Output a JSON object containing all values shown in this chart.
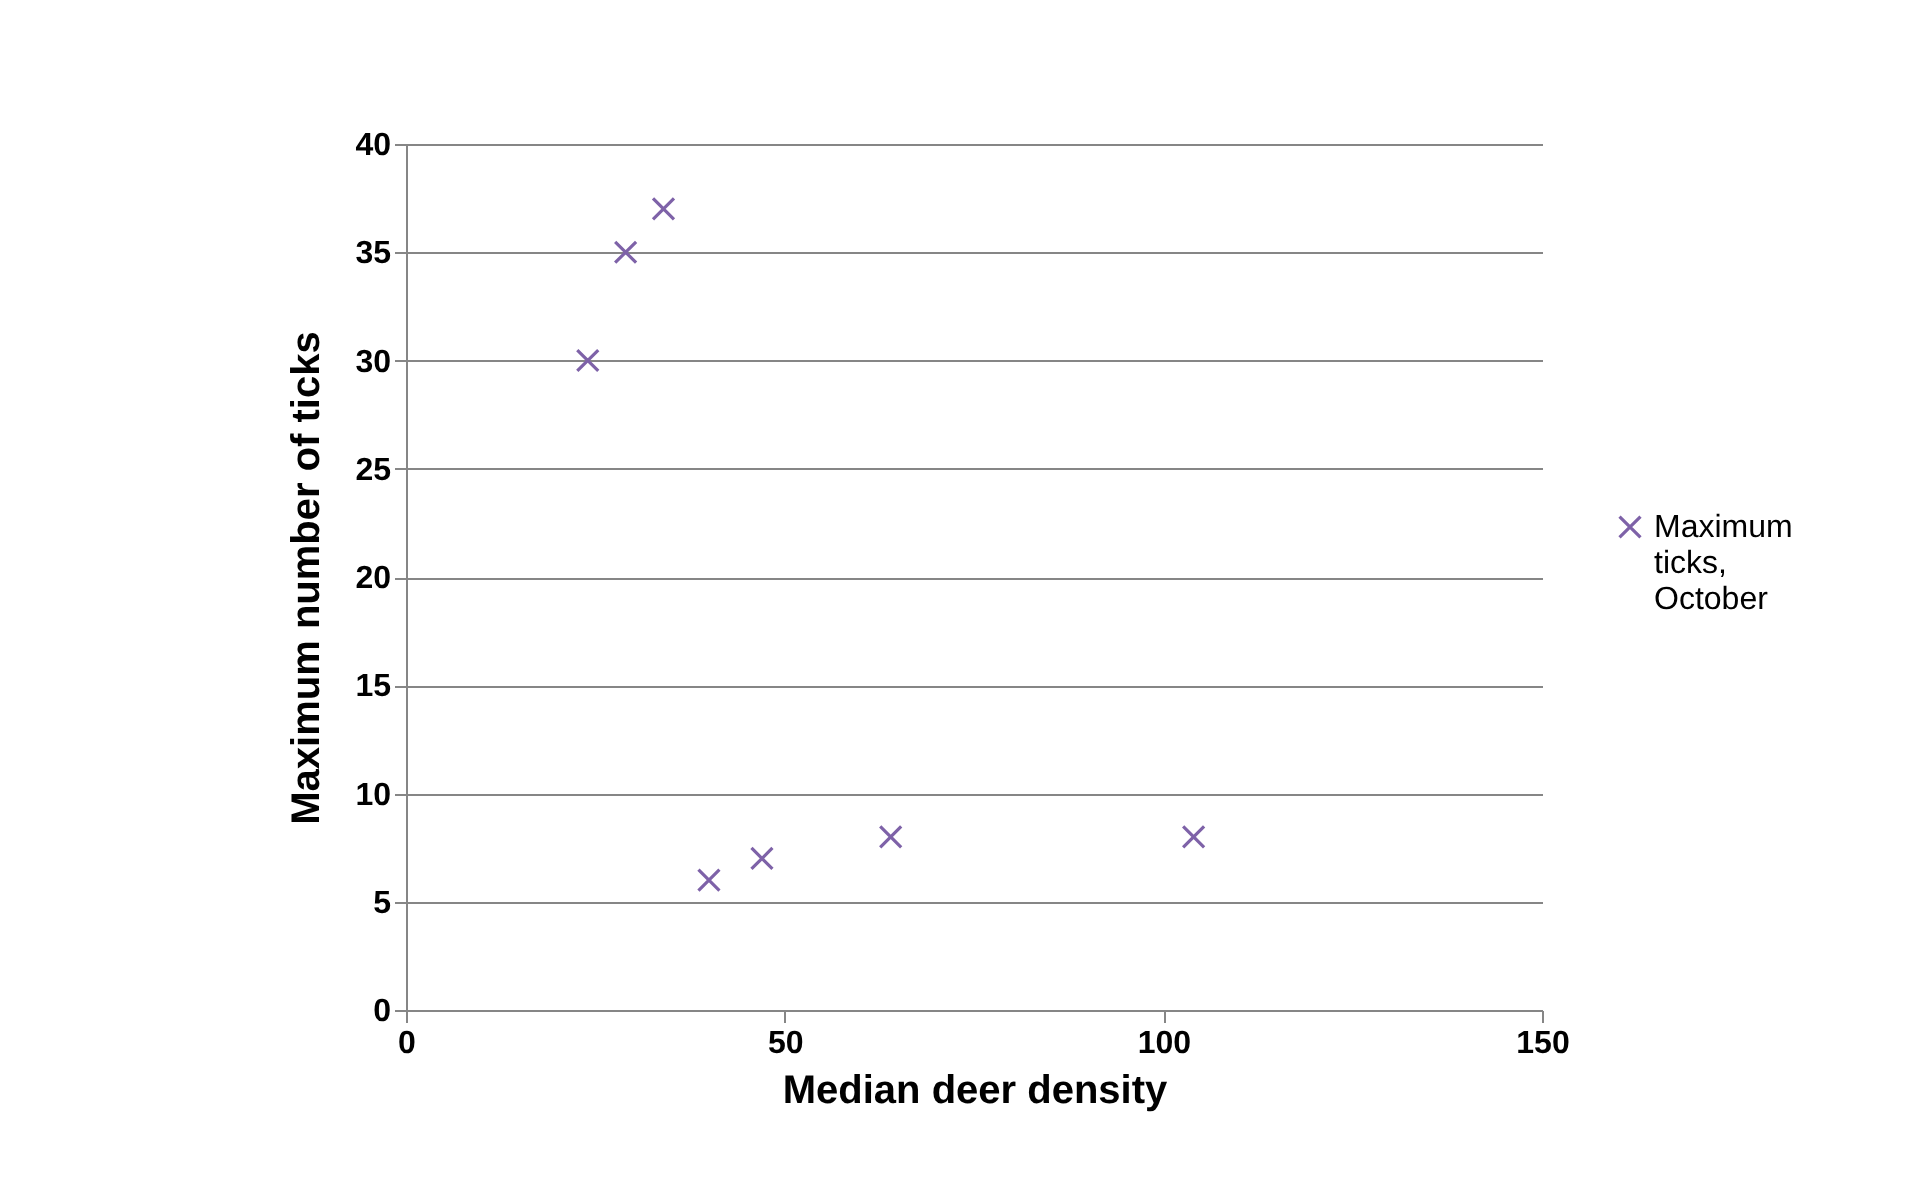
{
  "chart_data": {
    "type": "scatter",
    "xlabel": "Median deer density",
    "ylabel": "Maximum number of  ticks",
    "x": [
      24,
      29,
      34,
      40,
      47,
      64,
      104
    ],
    "series": [
      {
        "name": "Maximum ticks, October",
        "color": "#7e62a8",
        "values": [
          30,
          35,
          37,
          6,
          7,
          8,
          8
        ]
      }
    ],
    "xlim": [
      0,
      150
    ],
    "xticks": [
      0,
      50,
      100,
      150
    ],
    "ylim": [
      0,
      40
    ],
    "yticks": [
      0,
      5,
      10,
      15,
      20,
      25,
      30,
      35,
      40
    ],
    "grid": "y",
    "legend": "right",
    "marker": "cross"
  }
}
